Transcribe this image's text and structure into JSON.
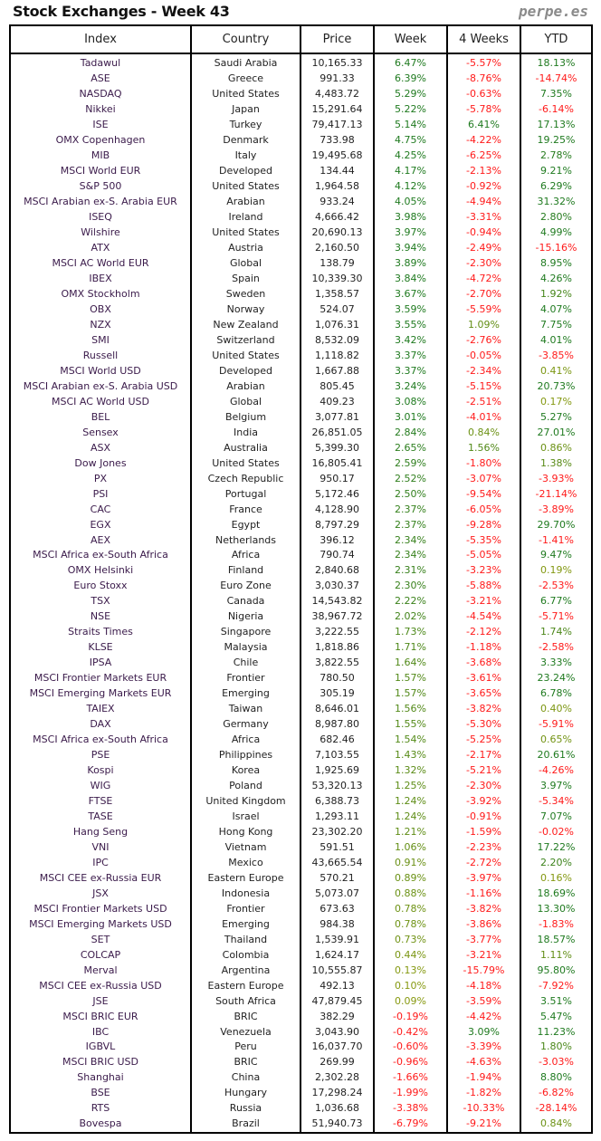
{
  "header": {
    "title": "Stock Exchanges - Week 43",
    "brand": "perpe.es"
  },
  "columns": [
    "Index",
    "Country",
    "Price",
    "Week",
    "4 Weeks",
    "YTD"
  ],
  "colors": {
    "negative": "#ff1a1a",
    "positive_strong": "#1f7a1f",
    "positive_weak": "#8a9a10"
  },
  "rows": [
    [
      "Tadawul",
      "Saudi Arabia",
      "10,165.33",
      "6.47%",
      "-5.57%",
      "18.13%"
    ],
    [
      "ASE",
      "Greece",
      "991.33",
      "6.39%",
      "-8.76%",
      "-14.74%"
    ],
    [
      "NASDAQ",
      "United States",
      "4,483.72",
      "5.29%",
      "-0.63%",
      "7.35%"
    ],
    [
      "Nikkei",
      "Japan",
      "15,291.64",
      "5.22%",
      "-5.78%",
      "-6.14%"
    ],
    [
      "ISE",
      "Turkey",
      "79,417.13",
      "5.14%",
      "6.41%",
      "17.13%"
    ],
    [
      "OMX Copenhagen",
      "Denmark",
      "733.98",
      "4.75%",
      "-4.22%",
      "19.25%"
    ],
    [
      "MIB",
      "Italy",
      "19,495.68",
      "4.25%",
      "-6.25%",
      "2.78%"
    ],
    [
      "MSCI World EUR",
      "Developed",
      "134.44",
      "4.17%",
      "-2.13%",
      "9.21%"
    ],
    [
      "S&P 500",
      "United States",
      "1,964.58",
      "4.12%",
      "-0.92%",
      "6.29%"
    ],
    [
      "MSCI Arabian ex-S. Arabia EUR",
      "Arabian",
      "933.24",
      "4.05%",
      "-4.94%",
      "31.32%"
    ],
    [
      "ISEQ",
      "Ireland",
      "4,666.42",
      "3.98%",
      "-3.31%",
      "2.80%"
    ],
    [
      "Wilshire",
      "United States",
      "20,690.13",
      "3.97%",
      "-0.94%",
      "4.99%"
    ],
    [
      "ATX",
      "Austria",
      "2,160.50",
      "3.94%",
      "-2.49%",
      "-15.16%"
    ],
    [
      "MSCI AC World EUR",
      "Global",
      "138.79",
      "3.89%",
      "-2.30%",
      "8.95%"
    ],
    [
      "IBEX",
      "Spain",
      "10,339.30",
      "3.84%",
      "-4.72%",
      "4.26%"
    ],
    [
      "OMX Stockholm",
      "Sweden",
      "1,358.57",
      "3.67%",
      "-2.70%",
      "1.92%"
    ],
    [
      "OBX",
      "Norway",
      "524.07",
      "3.59%",
      "-5.59%",
      "4.07%"
    ],
    [
      "NZX",
      "New Zealand",
      "1,076.31",
      "3.55%",
      "1.09%",
      "7.75%"
    ],
    [
      "SMI",
      "Switzerland",
      "8,532.09",
      "3.42%",
      "-2.76%",
      "4.01%"
    ],
    [
      "Russell",
      "United States",
      "1,118.82",
      "3.37%",
      "-0.05%",
      "-3.85%"
    ],
    [
      "MSCI World USD",
      "Developed",
      "1,667.88",
      "3.37%",
      "-2.34%",
      "0.41%"
    ],
    [
      "MSCI Arabian ex-S. Arabia USD",
      "Arabian",
      "805.45",
      "3.24%",
      "-5.15%",
      "20.73%"
    ],
    [
      "MSCI AC World USD",
      "Global",
      "409.23",
      "3.08%",
      "-2.51%",
      "0.17%"
    ],
    [
      "BEL",
      "Belgium",
      "3,077.81",
      "3.01%",
      "-4.01%",
      "5.27%"
    ],
    [
      "Sensex",
      "India",
      "26,851.05",
      "2.84%",
      "0.84%",
      "27.01%"
    ],
    [
      "ASX",
      "Australia",
      "5,399.30",
      "2.65%",
      "1.56%",
      "0.86%"
    ],
    [
      "Dow Jones",
      "United States",
      "16,805.41",
      "2.59%",
      "-1.80%",
      "1.38%"
    ],
    [
      "PX",
      "Czech Republic",
      "950.17",
      "2.52%",
      "-3.07%",
      "-3.93%"
    ],
    [
      "PSI",
      "Portugal",
      "5,172.46",
      "2.50%",
      "-9.54%",
      "-21.14%"
    ],
    [
      "CAC",
      "France",
      "4,128.90",
      "2.37%",
      "-6.05%",
      "-3.89%"
    ],
    [
      "EGX",
      "Egypt",
      "8,797.29",
      "2.37%",
      "-9.28%",
      "29.70%"
    ],
    [
      "AEX",
      "Netherlands",
      "396.12",
      "2.34%",
      "-5.35%",
      "-1.41%"
    ],
    [
      "MSCI Africa ex-South Africa",
      "Africa",
      "790.74",
      "2.34%",
      "-5.05%",
      "9.47%"
    ],
    [
      "OMX Helsinki",
      "Finland",
      "2,840.68",
      "2.31%",
      "-3.23%",
      "0.19%"
    ],
    [
      "Euro Stoxx",
      "Euro Zone",
      "3,030.37",
      "2.30%",
      "-5.88%",
      "-2.53%"
    ],
    [
      "TSX",
      "Canada",
      "14,543.82",
      "2.22%",
      "-3.21%",
      "6.77%"
    ],
    [
      "NSE",
      "Nigeria",
      "38,967.72",
      "2.02%",
      "-4.54%",
      "-5.71%"
    ],
    [
      "Straits Times",
      "Singapore",
      "3,222.55",
      "1.73%",
      "-2.12%",
      "1.74%"
    ],
    [
      "KLSE",
      "Malaysia",
      "1,818.86",
      "1.71%",
      "-1.18%",
      "-2.58%"
    ],
    [
      "IPSA",
      "Chile",
      "3,822.55",
      "1.64%",
      "-3.68%",
      "3.33%"
    ],
    [
      "MSCI Frontier Markets EUR",
      "Frontier",
      "780.50",
      "1.57%",
      "-3.61%",
      "23.24%"
    ],
    [
      "MSCI Emerging Markets EUR",
      "Emerging",
      "305.19",
      "1.57%",
      "-3.65%",
      "6.78%"
    ],
    [
      "TAIEX",
      "Taiwan",
      "8,646.01",
      "1.56%",
      "-3.82%",
      "0.40%"
    ],
    [
      "DAX",
      "Germany",
      "8,987.80",
      "1.55%",
      "-5.30%",
      "-5.91%"
    ],
    [
      "MSCI Africa ex-South Africa",
      "Africa",
      "682.46",
      "1.54%",
      "-5.25%",
      "0.65%"
    ],
    [
      "PSE",
      "Philippines",
      "7,103.55",
      "1.43%",
      "-2.17%",
      "20.61%"
    ],
    [
      "Kospi",
      "Korea",
      "1,925.69",
      "1.32%",
      "-5.21%",
      "-4.26%"
    ],
    [
      "WIG",
      "Poland",
      "53,320.13",
      "1.25%",
      "-2.30%",
      "3.97%"
    ],
    [
      "FTSE",
      "United Kingdom",
      "6,388.73",
      "1.24%",
      "-3.92%",
      "-5.34%"
    ],
    [
      "TASE",
      "Israel",
      "1,293.11",
      "1.24%",
      "-0.91%",
      "7.07%"
    ],
    [
      "Hang Seng",
      "Hong Kong",
      "23,302.20",
      "1.21%",
      "-1.59%",
      "-0.02%"
    ],
    [
      "VNI",
      "Vietnam",
      "591.51",
      "1.06%",
      "-2.23%",
      "17.22%"
    ],
    [
      "IPC",
      "Mexico",
      "43,665.54",
      "0.91%",
      "-2.72%",
      "2.20%"
    ],
    [
      "MSCI CEE ex-Russia EUR",
      "Eastern Europe",
      "570.21",
      "0.89%",
      "-3.97%",
      "0.16%"
    ],
    [
      "JSX",
      "Indonesia",
      "5,073.07",
      "0.88%",
      "-1.16%",
      "18.69%"
    ],
    [
      "MSCI Frontier Markets USD",
      "Frontier",
      "673.63",
      "0.78%",
      "-3.82%",
      "13.30%"
    ],
    [
      "MSCI Emerging Markets USD",
      "Emerging",
      "984.38",
      "0.78%",
      "-3.86%",
      "-1.83%"
    ],
    [
      "SET",
      "Thailand",
      "1,539.91",
      "0.73%",
      "-3.77%",
      "18.57%"
    ],
    [
      "COLCAP",
      "Colombia",
      "1,624.17",
      "0.44%",
      "-3.21%",
      "1.11%"
    ],
    [
      "Merval",
      "Argentina",
      "10,555.87",
      "0.13%",
      "-15.79%",
      "95.80%"
    ],
    [
      "MSCI CEE ex-Russia USD",
      "Eastern Europe",
      "492.13",
      "0.10%",
      "-4.18%",
      "-7.92%"
    ],
    [
      "JSE",
      "South Africa",
      "47,879.45",
      "0.09%",
      "-3.59%",
      "3.51%"
    ],
    [
      "MSCI BRIC EUR",
      "BRIC",
      "382.29",
      "-0.19%",
      "-4.42%",
      "5.47%"
    ],
    [
      "IBC",
      "Venezuela",
      "3,043.90",
      "-0.42%",
      "3.09%",
      "11.23%"
    ],
    [
      "IGBVL",
      "Peru",
      "16,037.70",
      "-0.60%",
      "-3.39%",
      "1.80%"
    ],
    [
      "MSCI BRIC USD",
      "BRIC",
      "269.99",
      "-0.96%",
      "-4.63%",
      "-3.03%"
    ],
    [
      "Shanghai",
      "China",
      "2,302.28",
      "-1.66%",
      "-1.94%",
      "8.80%"
    ],
    [
      "BSE",
      "Hungary",
      "17,298.24",
      "-1.99%",
      "-1.82%",
      "-6.82%"
    ],
    [
      "RTS",
      "Russia",
      "1,036.68",
      "-3.38%",
      "-10.33%",
      "-28.14%"
    ],
    [
      "Bovespa",
      "Brazil",
      "51,940.73",
      "-6.79%",
      "-9.21%",
      "0.84%"
    ]
  ]
}
